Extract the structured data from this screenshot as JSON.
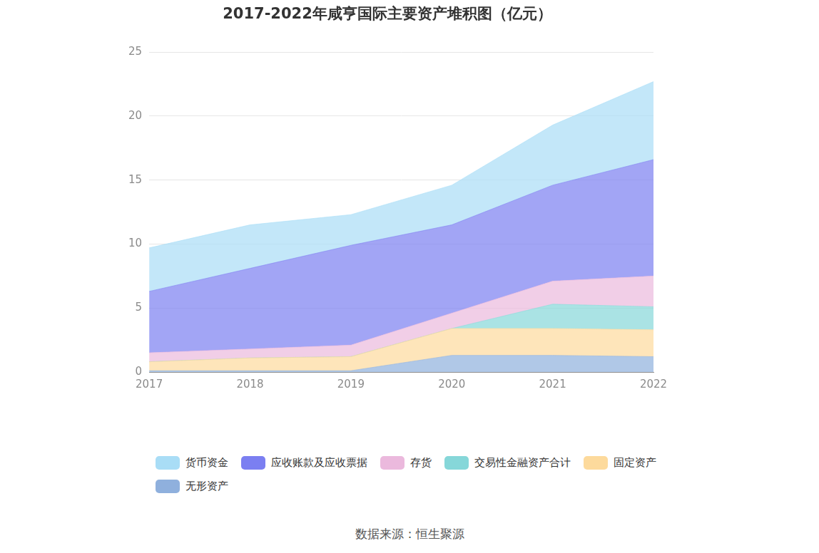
{
  "chart_data": {
    "type": "area",
    "title": "2017-2022年咸亨国际主要资产堆积图（亿元）",
    "categories": [
      "2017",
      "2018",
      "2019",
      "2020",
      "2021",
      "2022"
    ],
    "series": [
      {
        "name": "货币资金",
        "color": "#a9ddf6",
        "values": [
          3.4,
          3.4,
          2.4,
          3.1,
          4.7,
          6.1
        ]
      },
      {
        "name": "应收账款及应收票据",
        "color": "#7b7ff1",
        "values": [
          4.8,
          6.3,
          7.8,
          6.9,
          7.5,
          9.1
        ]
      },
      {
        "name": "存货",
        "color": "#ebb9dd",
        "values": [
          0.7,
          0.7,
          0.9,
          1.2,
          1.8,
          2.4
        ]
      },
      {
        "name": "交易性金融资产合计",
        "color": "#86d7d9",
        "values": [
          0,
          0,
          0,
          0,
          1.9,
          1.8
        ]
      },
      {
        "name": "固定资产",
        "color": "#fdda9c",
        "values": [
          0.7,
          1.0,
          1.1,
          2.1,
          2.1,
          2.1
        ]
      },
      {
        "name": "无形资产",
        "color": "#8fb0dd",
        "values": [
          0.1,
          0.1,
          0.1,
          1.3,
          1.3,
          1.2
        ]
      }
    ],
    "ylim": [
      0,
      25
    ],
    "yticks": [
      0,
      5,
      10,
      15,
      20,
      25
    ],
    "stacked": true,
    "grid": true,
    "legend": "bottom",
    "annotations": [
      "数据来源：恒生聚源"
    ]
  }
}
